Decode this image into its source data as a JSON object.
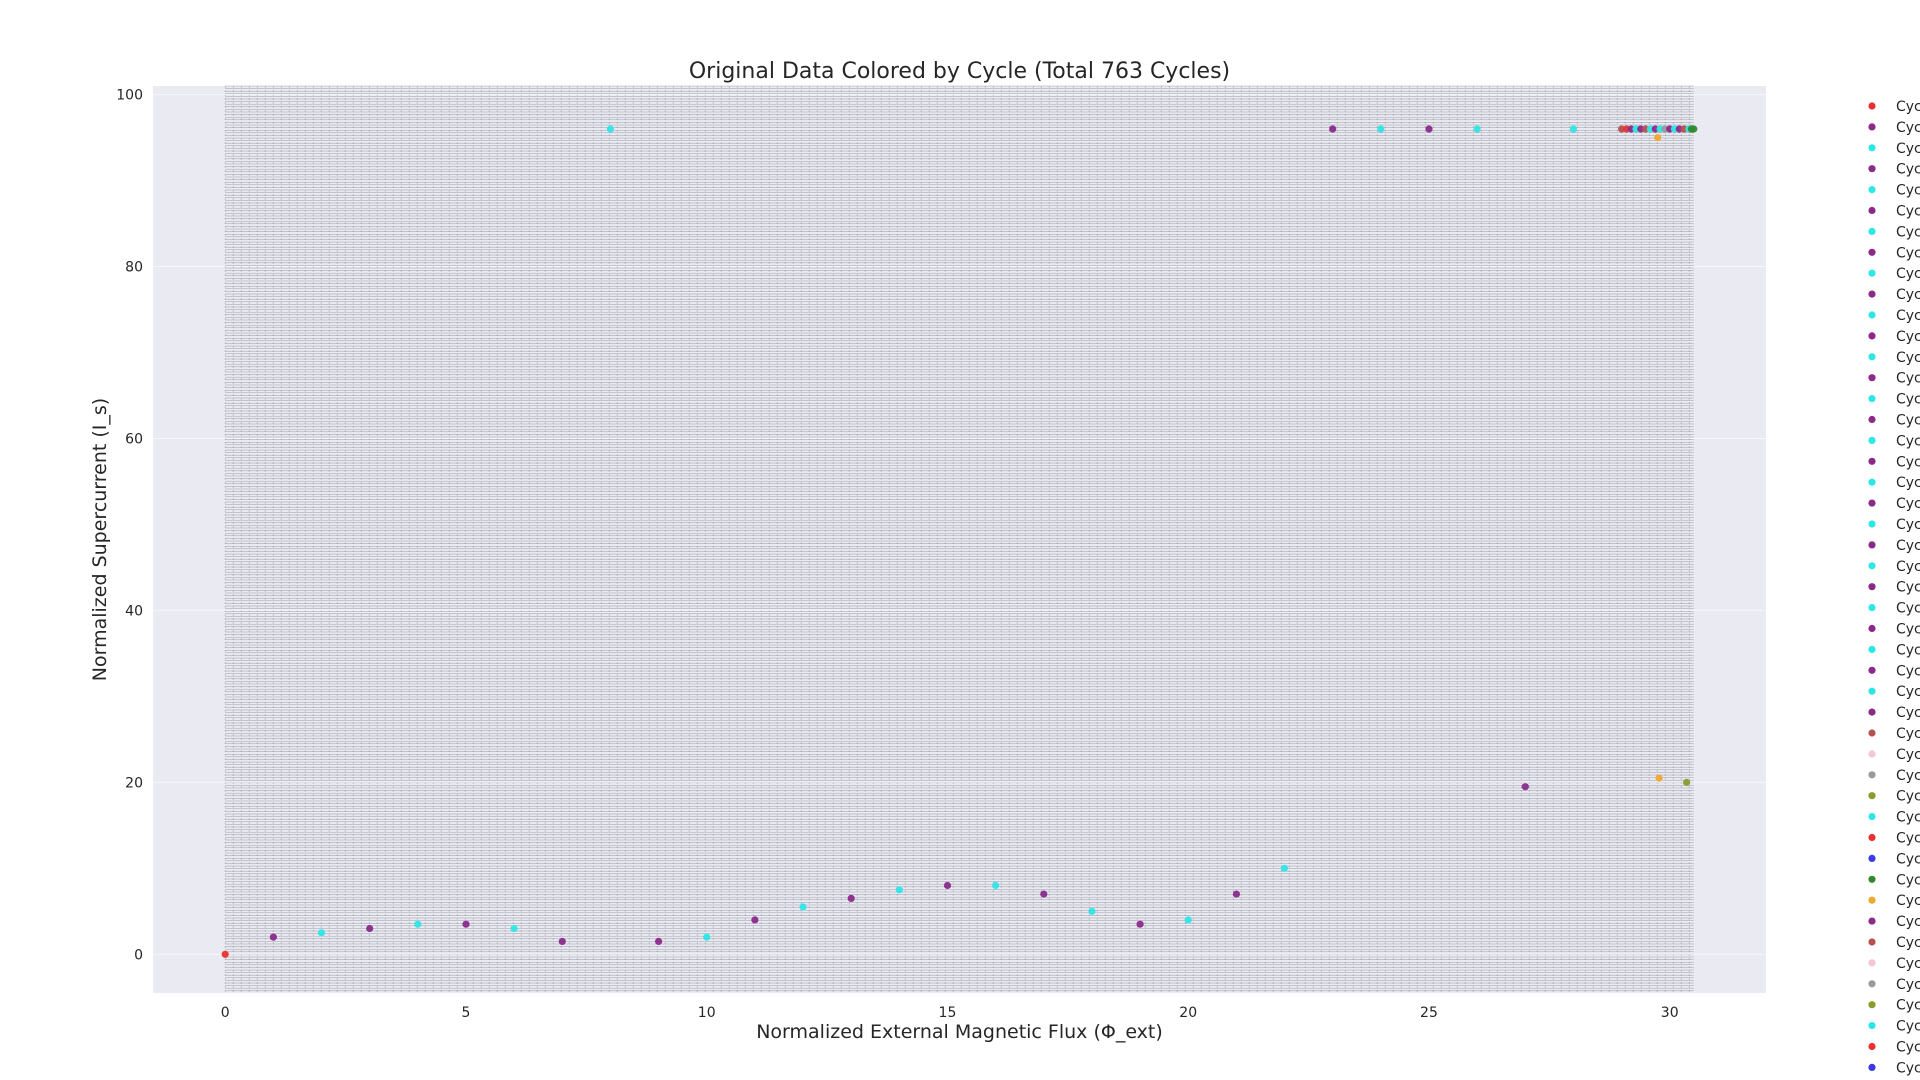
{
  "chart_data": {
    "type": "scatter",
    "title": "Original Data Colored by Cycle (Total 763 Cycles)",
    "xlabel": "Normalized External Magnetic Flux (Φ_ext)",
    "ylabel": "Normalized Supercurrent (I_s)",
    "xlim": [
      -1.5,
      32.0
    ],
    "ylim": [
      -4.5,
      101.0
    ],
    "xticks": [
      0,
      5,
      10,
      15,
      20,
      25,
      30
    ],
    "yticks": [
      0,
      20,
      40,
      60,
      80,
      100
    ],
    "grid": true,
    "background": "#eaeaf2",
    "cycle_lines": {
      "x_start": 0,
      "x_end": 30.5,
      "y_start": -4.5,
      "y_end": 101.0,
      "description": "dense overlay of many cycle lines"
    },
    "points": [
      {
        "x": 0,
        "y": 0,
        "color": "#e8312f"
      },
      {
        "x": 1,
        "y": 2,
        "color": "#8b2a8b"
      },
      {
        "x": 2,
        "y": 2.5,
        "color": "#2ee6e6"
      },
      {
        "x": 3,
        "y": 3,
        "color": "#8b2a8b"
      },
      {
        "x": 4,
        "y": 3.5,
        "color": "#2ee6e6"
      },
      {
        "x": 5,
        "y": 3.5,
        "color": "#8b2a8b"
      },
      {
        "x": 6,
        "y": 3,
        "color": "#2ee6e6"
      },
      {
        "x": 7,
        "y": 1.5,
        "color": "#8b2a8b"
      },
      {
        "x": 8,
        "y": 96,
        "color": "#2ee6e6"
      },
      {
        "x": 9,
        "y": 1.5,
        "color": "#8b2a8b"
      },
      {
        "x": 10,
        "y": 2,
        "color": "#2ee6e6"
      },
      {
        "x": 11,
        "y": 4,
        "color": "#8b2a8b"
      },
      {
        "x": 12,
        "y": 5.5,
        "color": "#2ee6e6"
      },
      {
        "x": 13,
        "y": 6.5,
        "color": "#8b2a8b"
      },
      {
        "x": 14,
        "y": 7.5,
        "color": "#2ee6e6"
      },
      {
        "x": 15,
        "y": 8,
        "color": "#8b2a8b"
      },
      {
        "x": 16,
        "y": 8,
        "color": "#2ee6e6"
      },
      {
        "x": 17,
        "y": 7,
        "color": "#8b2a8b"
      },
      {
        "x": 18,
        "y": 5,
        "color": "#2ee6e6"
      },
      {
        "x": 19,
        "y": 3.5,
        "color": "#8b2a8b"
      },
      {
        "x": 20,
        "y": 4,
        "color": "#2ee6e6"
      },
      {
        "x": 21,
        "y": 7,
        "color": "#8b2a8b"
      },
      {
        "x": 22,
        "y": 10,
        "color": "#2ee6e6"
      },
      {
        "x": 23,
        "y": 96,
        "color": "#8b2a8b"
      },
      {
        "x": 24,
        "y": 96,
        "color": "#2ee6e6"
      },
      {
        "x": 25,
        "y": 96,
        "color": "#8b2a8b"
      },
      {
        "x": 26,
        "y": 96,
        "color": "#2ee6e6"
      },
      {
        "x": 27,
        "y": 19.5,
        "color": "#8b2a8b"
      },
      {
        "x": 28,
        "y": 96,
        "color": "#2ee6e6"
      },
      {
        "x": 29.0,
        "y": 96,
        "color": "#b5514f"
      },
      {
        "x": 29.1,
        "y": 96,
        "color": "#e8312f"
      },
      {
        "x": 29.2,
        "y": 96,
        "color": "#8b2a8b"
      },
      {
        "x": 29.3,
        "y": 96,
        "color": "#2ee6e6"
      },
      {
        "x": 29.4,
        "y": 96,
        "color": "#8b2a8b"
      },
      {
        "x": 29.5,
        "y": 96,
        "color": "#b5514f"
      },
      {
        "x": 29.6,
        "y": 96,
        "color": "#2ee6e6"
      },
      {
        "x": 29.7,
        "y": 96,
        "color": "#8b2a8b"
      },
      {
        "x": 29.75,
        "y": 95,
        "color": "#f0a830"
      },
      {
        "x": 29.78,
        "y": 20.5,
        "color": "#f0a830"
      },
      {
        "x": 29.8,
        "y": 96,
        "color": "#2ee6e6"
      },
      {
        "x": 29.9,
        "y": 96,
        "color": "#9a9a9a"
      },
      {
        "x": 30.0,
        "y": 96,
        "color": "#8b2a8b"
      },
      {
        "x": 30.1,
        "y": 96,
        "color": "#2ee6e6"
      },
      {
        "x": 30.2,
        "y": 96,
        "color": "#8b2a8b"
      },
      {
        "x": 30.3,
        "y": 96,
        "color": "#b5514f"
      },
      {
        "x": 30.35,
        "y": 20,
        "color": "#8c9a2e"
      },
      {
        "x": 30.4,
        "y": 96,
        "color": "#2ee6e6"
      },
      {
        "x": 30.45,
        "y": 96,
        "color": "#2f8a2f"
      },
      {
        "x": 30.5,
        "y": 96,
        "color": "#2f8a2f"
      }
    ],
    "legend": {
      "placement": "outside-right",
      "entries": [
        {
          "label": "Cyc",
          "color": "#e8312f"
        },
        {
          "label": "Cyc",
          "color": "#8b2a8b"
        },
        {
          "label": "Cyc",
          "color": "#2ee6e6"
        },
        {
          "label": "Cyc",
          "color": "#8b2a8b"
        },
        {
          "label": "Cyc",
          "color": "#2ee6e6"
        },
        {
          "label": "Cyc",
          "color": "#8b2a8b"
        },
        {
          "label": "Cyc",
          "color": "#2ee6e6"
        },
        {
          "label": "Cyc",
          "color": "#8b2a8b"
        },
        {
          "label": "Cyc",
          "color": "#2ee6e6"
        },
        {
          "label": "Cyc",
          "color": "#8b2a8b"
        },
        {
          "label": "Cyc",
          "color": "#2ee6e6"
        },
        {
          "label": "Cyc",
          "color": "#8b2a8b"
        },
        {
          "label": "Cyc",
          "color": "#2ee6e6"
        },
        {
          "label": "Cyc",
          "color": "#8b2a8b"
        },
        {
          "label": "Cyc",
          "color": "#2ee6e6"
        },
        {
          "label": "Cyc",
          "color": "#8b2a8b"
        },
        {
          "label": "Cyc",
          "color": "#2ee6e6"
        },
        {
          "label": "Cyc",
          "color": "#8b2a8b"
        },
        {
          "label": "Cyc",
          "color": "#2ee6e6"
        },
        {
          "label": "Cyc",
          "color": "#8b2a8b"
        },
        {
          "label": "Cyc",
          "color": "#2ee6e6"
        },
        {
          "label": "Cyc",
          "color": "#8b2a8b"
        },
        {
          "label": "Cyc",
          "color": "#2ee6e6"
        },
        {
          "label": "Cyc",
          "color": "#8b2a8b"
        },
        {
          "label": "Cyc",
          "color": "#2ee6e6"
        },
        {
          "label": "Cyc",
          "color": "#8b2a8b"
        },
        {
          "label": "Cyc",
          "color": "#2ee6e6"
        },
        {
          "label": "Cyc",
          "color": "#8b2a8b"
        },
        {
          "label": "Cyc",
          "color": "#2ee6e6"
        },
        {
          "label": "Cyc",
          "color": "#8b2a8b"
        },
        {
          "label": "Cyc",
          "color": "#b5514f"
        },
        {
          "label": "Cyc",
          "color": "#f5c6d6"
        },
        {
          "label": "Cyc",
          "color": "#9a9a9a"
        },
        {
          "label": "Cyc",
          "color": "#8c9a2e"
        },
        {
          "label": "Cyc",
          "color": "#2ee6e6"
        },
        {
          "label": "Cyc",
          "color": "#e8312f"
        },
        {
          "label": "Cyc",
          "color": "#3a3ae6"
        },
        {
          "label": "Cyc",
          "color": "#2f8a2f"
        },
        {
          "label": "Cyc",
          "color": "#f0a830"
        },
        {
          "label": "Cyc",
          "color": "#8b2a8b"
        },
        {
          "label": "Cyc",
          "color": "#b5514f"
        },
        {
          "label": "Cyc",
          "color": "#f5c6d6"
        },
        {
          "label": "Cyc",
          "color": "#9a9a9a"
        },
        {
          "label": "Cyc",
          "color": "#8c9a2e"
        },
        {
          "label": "Cyc",
          "color": "#2ee6e6"
        },
        {
          "label": "Cyc",
          "color": "#e8312f"
        },
        {
          "label": "Cyc",
          "color": "#3a3ae6"
        }
      ]
    }
  }
}
